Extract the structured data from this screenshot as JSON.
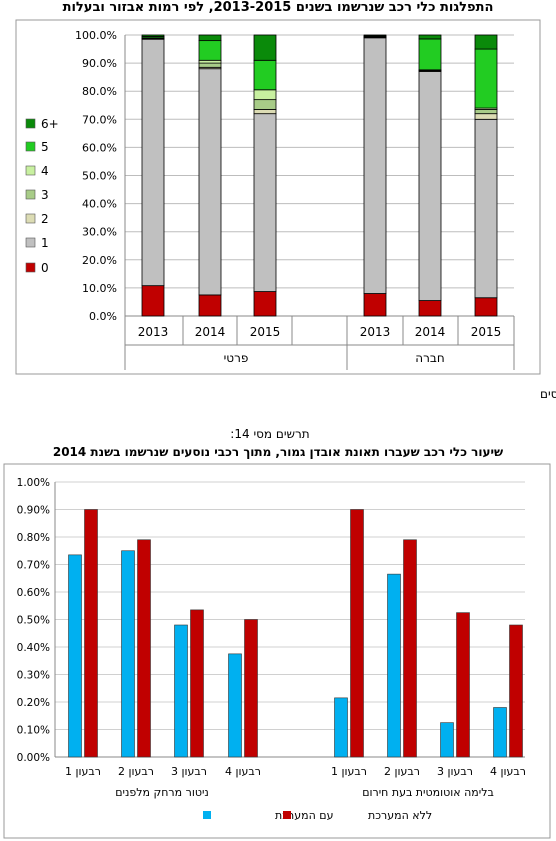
{
  "page": {
    "chart1_title": "התפלגות כלי רכב שנרשמו בשנים 2013-2015, לפי רמות אבזור ובעלות",
    "source_line": "מקור: נתוני משרד התחבורה, עיבודי החטיבה לתכנון וכלכלה, רשות המסים",
    "chart2_number": "תרשים מסי 14:",
    "chart2_title": "שיעור כלי רכב שעברו תאונת אובדן גמור, מתוך רכבי נוסעים שנרשמו בשנת 2014"
  },
  "colors": {
    "level_0": "#c00000",
    "level_1": "#c0c0c0",
    "level_2": "#dcdcb4",
    "level_3": "#a8cc88",
    "level_4": "#c8f0a0",
    "level_5": "#22cc22",
    "level_6plus": "#0a8a0a",
    "with_system": "#00b0f0",
    "without_system": "#c00000"
  },
  "chart_data": [
    {
      "type": "bar",
      "stacked": true,
      "title": "התפלגות כלי רכב שנרשמו בשנים 2013-2015, לפי רמות אבזור ובעלות",
      "ylim": [
        0,
        100
      ],
      "y_ticks": [
        "0.0%",
        "10.0%",
        "20.0%",
        "30.0%",
        "40.0%",
        "50.0%",
        "60.0%",
        "70.0%",
        "80.0%",
        "90.0%",
        "100.0%"
      ],
      "grid": true,
      "legend_position": "left",
      "legend": [
        "6+",
        "5",
        "4",
        "3",
        "2",
        "1",
        "0"
      ],
      "groups": [
        {
          "label": "פרטי",
          "categories": [
            "2013",
            "2014",
            "2015"
          ]
        },
        {
          "label": "חברה",
          "categories": [
            "2013",
            "2014",
            "2015"
          ]
        }
      ],
      "categories": [
        "2013",
        "2014",
        "2015",
        "2013",
        "2014",
        "2015"
      ],
      "series": [
        {
          "name": "0",
          "values": [
            10.8,
            7.5,
            8.7,
            8.0,
            5.5,
            6.5
          ]
        },
        {
          "name": "1",
          "values": [
            87.7,
            80.5,
            63.3,
            91.0,
            81.5,
            63.5
          ]
        },
        {
          "name": "2",
          "values": [
            0.2,
            0.5,
            1.5,
            0.2,
            0.3,
            2.0
          ]
        },
        {
          "name": "3",
          "values": [
            0.2,
            1.5,
            3.5,
            0.1,
            0.2,
            1.5
          ]
        },
        {
          "name": "4",
          "values": [
            0.1,
            1.0,
            3.5,
            0.1,
            0.1,
            0.5
          ]
        },
        {
          "name": "5",
          "values": [
            0.5,
            7.0,
            10.5,
            0.3,
            11.0,
            21.0
          ]
        },
        {
          "name": "6+",
          "values": [
            0.5,
            2.0,
            9.0,
            0.3,
            1.4,
            5.0
          ]
        }
      ]
    },
    {
      "type": "bar",
      "title": "שיעור כלי רכב שעברו תאונת אובדן גמור, מתוך רכבי נוסעים שנרשמו בשנת 2014",
      "ylim": [
        0,
        1
      ],
      "y_ticks": [
        "0.00%",
        "0.10%",
        "0.20%",
        "0.30%",
        "0.40%",
        "0.50%",
        "0.60%",
        "0.70%",
        "0.80%",
        "0.90%",
        "1.00%"
      ],
      "grid": true,
      "legend_position": "bottom",
      "legend": [
        "עם המערכת",
        "ללא המערכת"
      ],
      "groups": [
        {
          "label": "ניטור מרחק מלפנים",
          "categories": [
            "רבעון 1",
            "רבעון 2",
            "רבעון 3",
            "רבעון 4"
          ]
        },
        {
          "label": "בלימה אוטומטית בעת חירום",
          "categories": [
            "רבעון 1",
            "רבעון 2",
            "רבעון 3",
            "רבעון 4"
          ]
        }
      ],
      "categories": [
        "רבעון 1",
        "רבעון 2",
        "רבעון 3",
        "רבעון 4",
        "רבעון 1",
        "רבעון 2",
        "רבעון 3",
        "רבעון 4"
      ],
      "series": [
        {
          "name": "עם המערכת",
          "values": [
            0.735,
            0.75,
            0.48,
            0.375,
            0.215,
            0.665,
            0.125,
            0.18
          ]
        },
        {
          "name": "ללא המערכת",
          "values": [
            0.9,
            0.79,
            0.535,
            0.5,
            0.9,
            0.79,
            0.525,
            0.48
          ]
        }
      ]
    }
  ]
}
